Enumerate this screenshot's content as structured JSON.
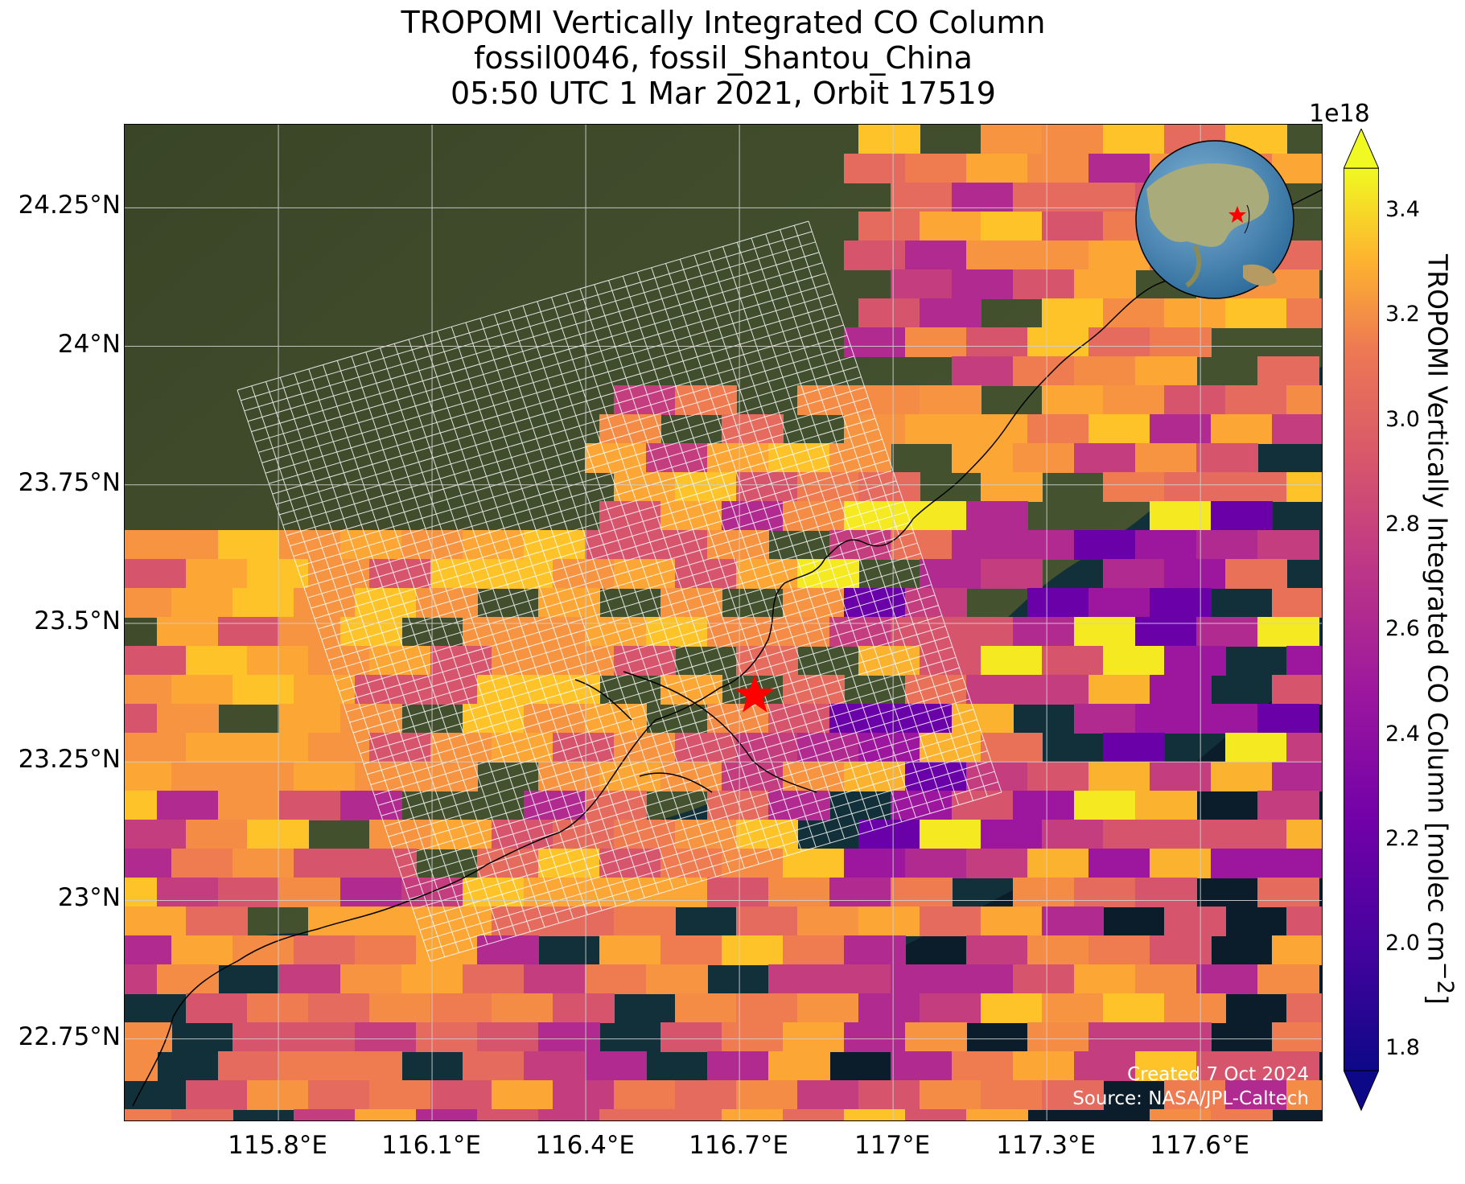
{
  "title": {
    "line1": "TROPOMI Vertically Integrated CO Column",
    "line2": "fossil0046, fossil_Shantou_China",
    "line3": "05:50 UTC 1 Mar 2021, Orbit 17519"
  },
  "map": {
    "lat_ticks": [
      "24.25°N",
      "24°N",
      "23.75°N",
      "23.5°N",
      "23.25°N",
      "23°N",
      "22.75°N"
    ],
    "lon_ticks": [
      "115.8°E",
      "116.1°E",
      "116.4°E",
      "116.7°E",
      "117°E",
      "117.3°E",
      "117.6°E"
    ],
    "lat_values": [
      24.25,
      24.0,
      23.75,
      23.5,
      23.25,
      23.0,
      22.75
    ],
    "lon_values": [
      115.8,
      116.1,
      116.4,
      116.7,
      117.0,
      117.3,
      117.6
    ],
    "extent": {
      "lon_min": 115.5,
      "lon_max": 117.84,
      "lat_min": 22.6,
      "lat_max": 24.4
    },
    "target_site": {
      "name_icon": "red-star-icon",
      "lon": 116.73,
      "lat": 23.37,
      "color": "#ff0000"
    },
    "created_text": "Created 7 Oct 2024",
    "source_text": "Source: NASA/JPL-Caltech",
    "inset": "globe-icon"
  },
  "colorbar": {
    "label": "TROPOMI Vertically Integrated CO Column [molec cm",
    "label_sup": "−2",
    "label_end": "]",
    "exponent": "1e18",
    "min": 1.8,
    "max": 3.4,
    "ticks": [
      "3.4",
      "3.2",
      "3.0",
      "2.8",
      "2.6",
      "2.4",
      "2.2",
      "2.0",
      "1.8"
    ],
    "tick_values": [
      3.4,
      3.2,
      3.0,
      2.8,
      2.6,
      2.4,
      2.2,
      2.0,
      1.8
    ],
    "colormap": "plasma",
    "extend": "both"
  },
  "colors": {
    "land": "#3f4a2c",
    "sea": "#0c1e2b",
    "grid": "#d0d0d0"
  }
}
